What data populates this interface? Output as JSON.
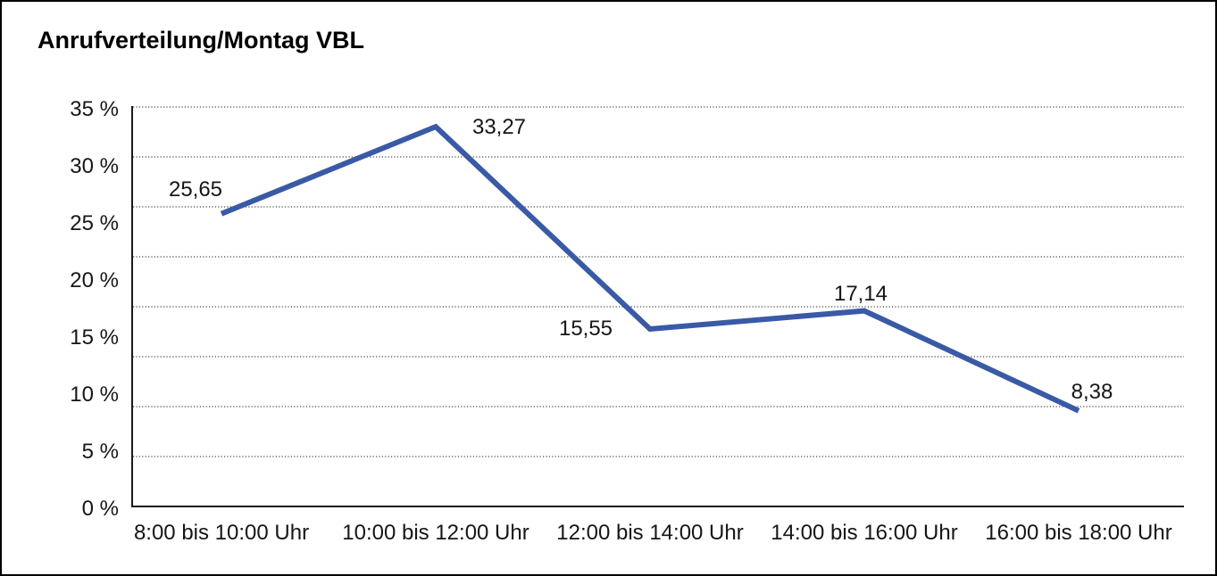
{
  "page": {
    "title": "Anrufverteilung/Montag VBL"
  },
  "colors": {
    "background": "#ffffff",
    "frame_border": "#000000",
    "line": "#3A5AA6",
    "grid": "#474747",
    "axis": "#1a1a1a",
    "text": "#161616"
  },
  "chart_data": {
    "type": "line",
    "title": "Anrufverteilung/Montag VBL",
    "categories": [
      "8:00 bis 10:00 Uhr",
      "10:00 bis 12:00 Uhr",
      "12:00 bis 14:00 Uhr",
      "14:00 bis 16:00 Uhr",
      "16:00 bis 18:00 Uhr"
    ],
    "values": [
      25.65,
      33.27,
      15.55,
      17.14,
      8.38
    ],
    "point_labels": [
      "25,65",
      "33,27",
      "15,55",
      "17,14",
      "8,38"
    ],
    "ytick_labels": [
      "35 %",
      "30 %",
      "25 %",
      "20 %",
      "15 %",
      "10 %",
      "5 %",
      "0 %"
    ],
    "ylim": [
      0,
      35
    ],
    "xlabel": "",
    "ylabel": "",
    "grid": "horizontal-dotted",
    "legend": "none"
  }
}
